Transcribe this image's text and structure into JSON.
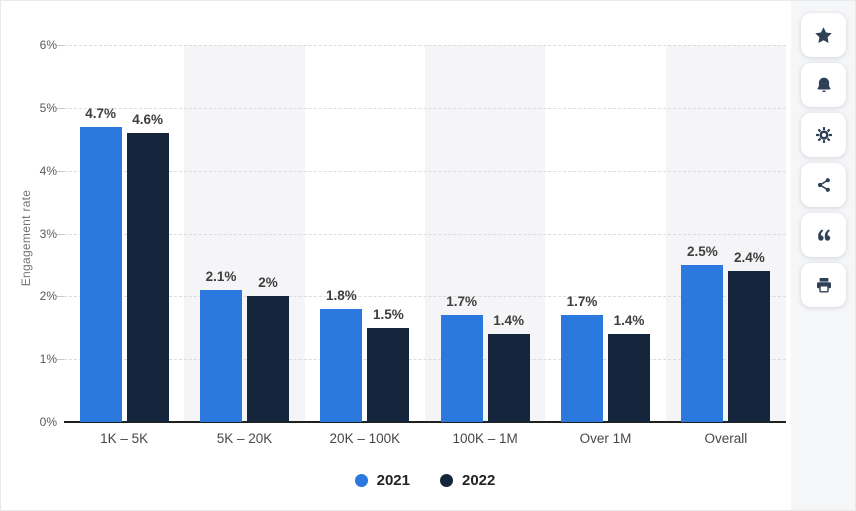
{
  "chart_data": {
    "type": "bar",
    "title": "",
    "ylabel": "Engagement rate",
    "xlabel": "",
    "ylim": [
      0,
      6
    ],
    "yticks": [
      "0%",
      "1%",
      "2%",
      "3%",
      "4%",
      "5%",
      "6%"
    ],
    "grid": true,
    "legend_position": "bottom",
    "categories": [
      "1K – 5K",
      "5K – 20K",
      "20K – 100K",
      "100K – 1M",
      "Over 1M",
      "Overall"
    ],
    "series": [
      {
        "name": "2021",
        "color": "#2b78de",
        "values": [
          4.7,
          2.1,
          1.8,
          1.7,
          1.7,
          2.5
        ],
        "labels": [
          "4.7%",
          "2.1%",
          "1.8%",
          "1.7%",
          "1.7%",
          "2.5%"
        ]
      },
      {
        "name": "2022",
        "color": "#15263c",
        "values": [
          4.6,
          2.0,
          1.5,
          1.4,
          1.4,
          2.4
        ],
        "labels": [
          "4.6%",
          "2%",
          "1.5%",
          "1.4%",
          "1.4%",
          "2.4%"
        ]
      }
    ]
  },
  "sidebar": {
    "buttons": [
      {
        "name": "favorite",
        "icon": "star-icon"
      },
      {
        "name": "notifications",
        "icon": "bell-icon"
      },
      {
        "name": "settings",
        "icon": "gear-icon"
      },
      {
        "name": "share",
        "icon": "share-icon"
      },
      {
        "name": "cite",
        "icon": "quote-icon"
      },
      {
        "name": "print",
        "icon": "printer-icon"
      }
    ]
  },
  "colors": {
    "axis": "#202020",
    "gridline": "#dcdcdc",
    "plot_band": "#f5f5f7",
    "sidebar_bg": "#f5f6f8",
    "icon": "#2e4156",
    "series_2021": "#2b78de",
    "series_2022": "#15263c"
  }
}
